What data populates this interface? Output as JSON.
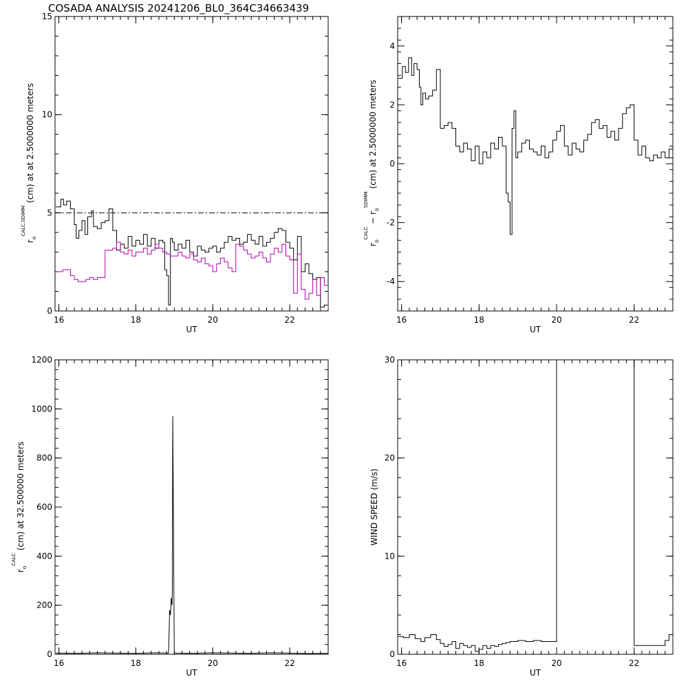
{
  "page_title": "COSADA ANALYSIS  20241206_BL0_364C34663439",
  "colors": {
    "axis": "#000000",
    "sdimm": "#000000",
    "calc": "#b000b0",
    "reference": "#000000"
  },
  "chart_data": [
    {
      "id": "panel-ro-compare",
      "type": "line",
      "xlabel": "UT",
      "ylabel_main": "r",
      "ylabel_sub": "o",
      "ylabel_sup": "CALC,SDIMM",
      "ylabel_rest": " (cm)  at  at 2.5000000 meters",
      "xlim": [
        15.9,
        23.0
      ],
      "ylim": [
        0,
        15
      ],
      "xticks": [
        16,
        18,
        20,
        22
      ],
      "yticks": [
        0,
        5,
        10,
        15
      ],
      "reference_line": {
        "y": 5.0,
        "style": "dash-dot"
      },
      "series": [
        {
          "key": "sdimm",
          "step": true,
          "color": "#000000",
          "x": [
            15.92,
            16.05,
            16.12,
            16.2,
            16.3,
            16.4,
            16.45,
            16.52,
            16.6,
            16.68,
            16.75,
            16.85,
            16.9,
            17.0,
            17.1,
            17.2,
            17.3,
            17.4,
            17.5,
            17.6,
            17.7,
            17.8,
            17.9,
            18.0,
            18.1,
            18.2,
            18.3,
            18.4,
            18.5,
            18.6,
            18.7,
            18.75,
            18.8,
            18.85,
            18.9,
            18.95,
            19.0,
            19.1,
            19.2,
            19.3,
            19.4,
            19.5,
            19.6,
            19.7,
            19.8,
            19.9,
            20.0,
            20.1,
            20.2,
            20.3,
            20.4,
            20.5,
            20.6,
            20.7,
            20.8,
            20.9,
            21.0,
            21.1,
            21.2,
            21.3,
            21.4,
            21.5,
            21.6,
            21.7,
            21.8,
            21.9,
            22.0,
            22.1,
            22.2,
            22.3,
            22.4,
            22.5,
            22.6,
            22.7,
            22.8,
            22.9,
            23.0
          ],
          "y": [
            5.3,
            5.7,
            5.4,
            5.6,
            5.2,
            4.4,
            3.7,
            4.1,
            4.6,
            3.9,
            4.8,
            5.1,
            4.3,
            4.2,
            4.5,
            4.6,
            5.2,
            4.1,
            3.1,
            3.4,
            3.2,
            3.8,
            3.3,
            3.6,
            3.4,
            3.9,
            3.3,
            3.7,
            3.2,
            3.6,
            3.5,
            2.1,
            1.8,
            0.3,
            3.7,
            3.5,
            3.1,
            3.4,
            3.2,
            3.6,
            3.0,
            2.8,
            3.3,
            3.1,
            3.0,
            3.2,
            3.3,
            3.0,
            3.2,
            3.5,
            3.8,
            3.6,
            3.7,
            3.4,
            3.5,
            3.9,
            3.6,
            3.4,
            3.8,
            3.3,
            3.5,
            3.7,
            4.0,
            4.2,
            4.1,
            3.5,
            3.2,
            2.6,
            3.8,
            2.0,
            2.4,
            1.9,
            1.6,
            1.7,
            0.2,
            0.3,
            0.2
          ]
        },
        {
          "key": "calc",
          "step": true,
          "color": "#b000b0",
          "x": [
            15.92,
            16.1,
            16.3,
            16.4,
            16.5,
            16.6,
            16.7,
            16.8,
            16.9,
            17.0,
            17.2,
            17.4,
            17.5,
            17.6,
            17.7,
            17.8,
            17.9,
            18.0,
            18.2,
            18.3,
            18.4,
            18.5,
            18.6,
            18.7,
            18.8,
            18.9,
            19.0,
            19.1,
            19.2,
            19.3,
            19.4,
            19.5,
            19.6,
            19.7,
            19.8,
            19.9,
            20.0,
            20.1,
            20.2,
            20.3,
            20.4,
            20.5,
            20.6,
            20.7,
            20.8,
            20.9,
            21.0,
            21.1,
            21.2,
            21.3,
            21.4,
            21.5,
            21.6,
            21.7,
            21.8,
            21.9,
            22.0,
            22.1,
            22.2,
            22.3,
            22.4,
            22.5,
            22.6,
            22.7,
            22.8,
            22.9,
            23.0
          ],
          "y": [
            2.0,
            2.1,
            1.8,
            1.6,
            1.5,
            1.5,
            1.6,
            1.7,
            1.6,
            1.7,
            3.1,
            3.2,
            3.5,
            3.0,
            2.9,
            3.1,
            2.8,
            3.0,
            3.2,
            2.9,
            3.1,
            3.4,
            3.2,
            3.0,
            2.9,
            2.8,
            2.8,
            3.0,
            2.8,
            2.7,
            2.9,
            2.6,
            2.5,
            2.7,
            2.4,
            2.3,
            2.0,
            2.4,
            2.7,
            2.5,
            2.2,
            2.0,
            3.4,
            3.3,
            3.1,
            2.9,
            2.7,
            2.8,
            3.0,
            2.7,
            2.5,
            2.9,
            3.2,
            3.0,
            3.4,
            2.8,
            2.6,
            0.9,
            2.9,
            1.1,
            0.6,
            0.9,
            1.6,
            0.8,
            1.7,
            1.3,
            0.1
          ]
        }
      ]
    },
    {
      "id": "panel-ro-difference",
      "type": "line",
      "xlabel": "UT",
      "ylabel_main": "r",
      "ylabel_sub": "o",
      "ylabel_sup": "CALC",
      "ylabel_mid": "  − r",
      "ylabel_sub2": "o",
      "ylabel_sup2": "SDIMM",
      "ylabel_rest": " (cm) at 2.5000000 meters",
      "xlim": [
        15.9,
        23.0
      ],
      "ylim": [
        -5,
        5
      ],
      "xticks": [
        16,
        18,
        20,
        22
      ],
      "yticks": [
        -4,
        -2,
        0,
        2,
        4
      ],
      "series": [
        {
          "key": "difference",
          "step": true,
          "color": "#000000",
          "x": [
            15.92,
            16.02,
            16.1,
            16.18,
            16.26,
            16.32,
            16.4,
            16.46,
            16.5,
            16.55,
            16.62,
            16.7,
            16.8,
            16.9,
            17.0,
            17.1,
            17.2,
            17.3,
            17.4,
            17.5,
            17.6,
            17.7,
            17.8,
            17.9,
            18.0,
            18.1,
            18.2,
            18.3,
            18.4,
            18.5,
            18.6,
            18.7,
            18.75,
            18.8,
            18.85,
            18.9,
            18.95,
            19.0,
            19.1,
            19.2,
            19.3,
            19.4,
            19.5,
            19.6,
            19.7,
            19.8,
            19.9,
            20.0,
            20.1,
            20.2,
            20.3,
            20.4,
            20.5,
            20.6,
            20.7,
            20.8,
            20.9,
            21.0,
            21.1,
            21.2,
            21.3,
            21.4,
            21.5,
            21.6,
            21.7,
            21.8,
            21.9,
            22.0,
            22.1,
            22.2,
            22.3,
            22.4,
            22.5,
            22.6,
            22.7,
            22.8,
            22.9,
            23.0
          ],
          "y": [
            2.9,
            3.3,
            3.1,
            3.6,
            3.0,
            3.4,
            3.2,
            2.6,
            2.0,
            2.4,
            2.2,
            2.3,
            2.5,
            3.2,
            1.2,
            1.3,
            1.4,
            1.2,
            0.6,
            0.4,
            0.7,
            0.5,
            0.1,
            0.6,
            0.0,
            0.4,
            0.2,
            0.7,
            0.5,
            0.9,
            0.6,
            -1.0,
            -1.3,
            -2.4,
            1.2,
            1.8,
            0.2,
            0.4,
            0.7,
            0.8,
            0.5,
            0.4,
            0.3,
            0.6,
            0.2,
            0.4,
            0.8,
            1.1,
            1.3,
            0.6,
            0.3,
            0.7,
            0.5,
            0.4,
            0.8,
            1.0,
            1.4,
            1.5,
            1.2,
            1.3,
            0.9,
            1.1,
            0.8,
            1.2,
            1.7,
            1.9,
            2.0,
            0.8,
            0.3,
            0.6,
            0.2,
            0.1,
            0.3,
            0.2,
            0.4,
            0.2,
            0.5,
            0.5
          ]
        }
      ]
    },
    {
      "id": "panel-ro-high",
      "type": "line",
      "xlabel": "UT",
      "ylabel_main": "r",
      "ylabel_sub": "o",
      "ylabel_sup": "CALC",
      "ylabel_rest": " (cm) at 32.500000 meters",
      "xlim": [
        15.9,
        23.0
      ],
      "ylim": [
        0,
        1200
      ],
      "xticks": [
        16,
        18,
        20,
        22
      ],
      "yticks": [
        0,
        200,
        400,
        600,
        800,
        1000,
        1200
      ],
      "series": [
        {
          "key": "calc_high",
          "step": false,
          "color": "#000000",
          "x": [
            15.92,
            16.5,
            17.0,
            17.5,
            18.0,
            18.5,
            18.85,
            18.88,
            18.9,
            18.92,
            18.94,
            18.95,
            18.96,
            19.0,
            19.01,
            19.05,
            19.5,
            20.0,
            20.5,
            21.0,
            21.5,
            22.0,
            22.5,
            23.0
          ],
          "y": [
            5,
            4,
            6,
            5,
            4,
            6,
            5,
            180,
            160,
            230,
            200,
            260,
            970,
            5,
            6,
            5,
            4,
            6,
            5,
            4,
            6,
            5,
            3,
            4
          ]
        }
      ]
    },
    {
      "id": "panel-wind",
      "type": "line",
      "xlabel": "UT",
      "ylabel": "WIND SPEED (m/s)",
      "xlim": [
        15.9,
        23.0
      ],
      "ylim": [
        0,
        30
      ],
      "xticks": [
        16,
        18,
        20,
        22
      ],
      "yticks": [
        0,
        10,
        20,
        30
      ],
      "series": [
        {
          "key": "wind",
          "step": true,
          "color": "#000000",
          "x": [
            15.92,
            16.05,
            16.2,
            16.35,
            16.5,
            16.6,
            16.75,
            16.9,
            17.0,
            17.1,
            17.2,
            17.3,
            17.4,
            17.5,
            17.6,
            17.7,
            17.8,
            17.9,
            18.0,
            18.1,
            18.2,
            18.3,
            18.4,
            18.5,
            18.6,
            18.7,
            18.8,
            19.0,
            19.2,
            19.4,
            19.6,
            19.8,
            19.95,
            20.0,
            21.95,
            22.0,
            22.2,
            22.4,
            22.5,
            22.6,
            22.7,
            22.8,
            22.9,
            23.0
          ],
          "y": [
            1.8,
            1.7,
            2.0,
            1.6,
            1.3,
            1.7,
            2.0,
            1.5,
            1.1,
            0.8,
            1.0,
            1.3,
            0.6,
            1.1,
            0.9,
            0.7,
            0.9,
            0.3,
            0.5,
            0.9,
            0.6,
            0.9,
            0.8,
            1.0,
            1.1,
            1.2,
            1.3,
            1.4,
            1.3,
            1.4,
            1.3,
            1.3,
            1.3,
            30,
            30,
            0.9,
            0.9,
            0.9,
            0.9,
            0.9,
            0.9,
            1.4,
            2.0,
            2.1
          ]
        }
      ]
    }
  ]
}
